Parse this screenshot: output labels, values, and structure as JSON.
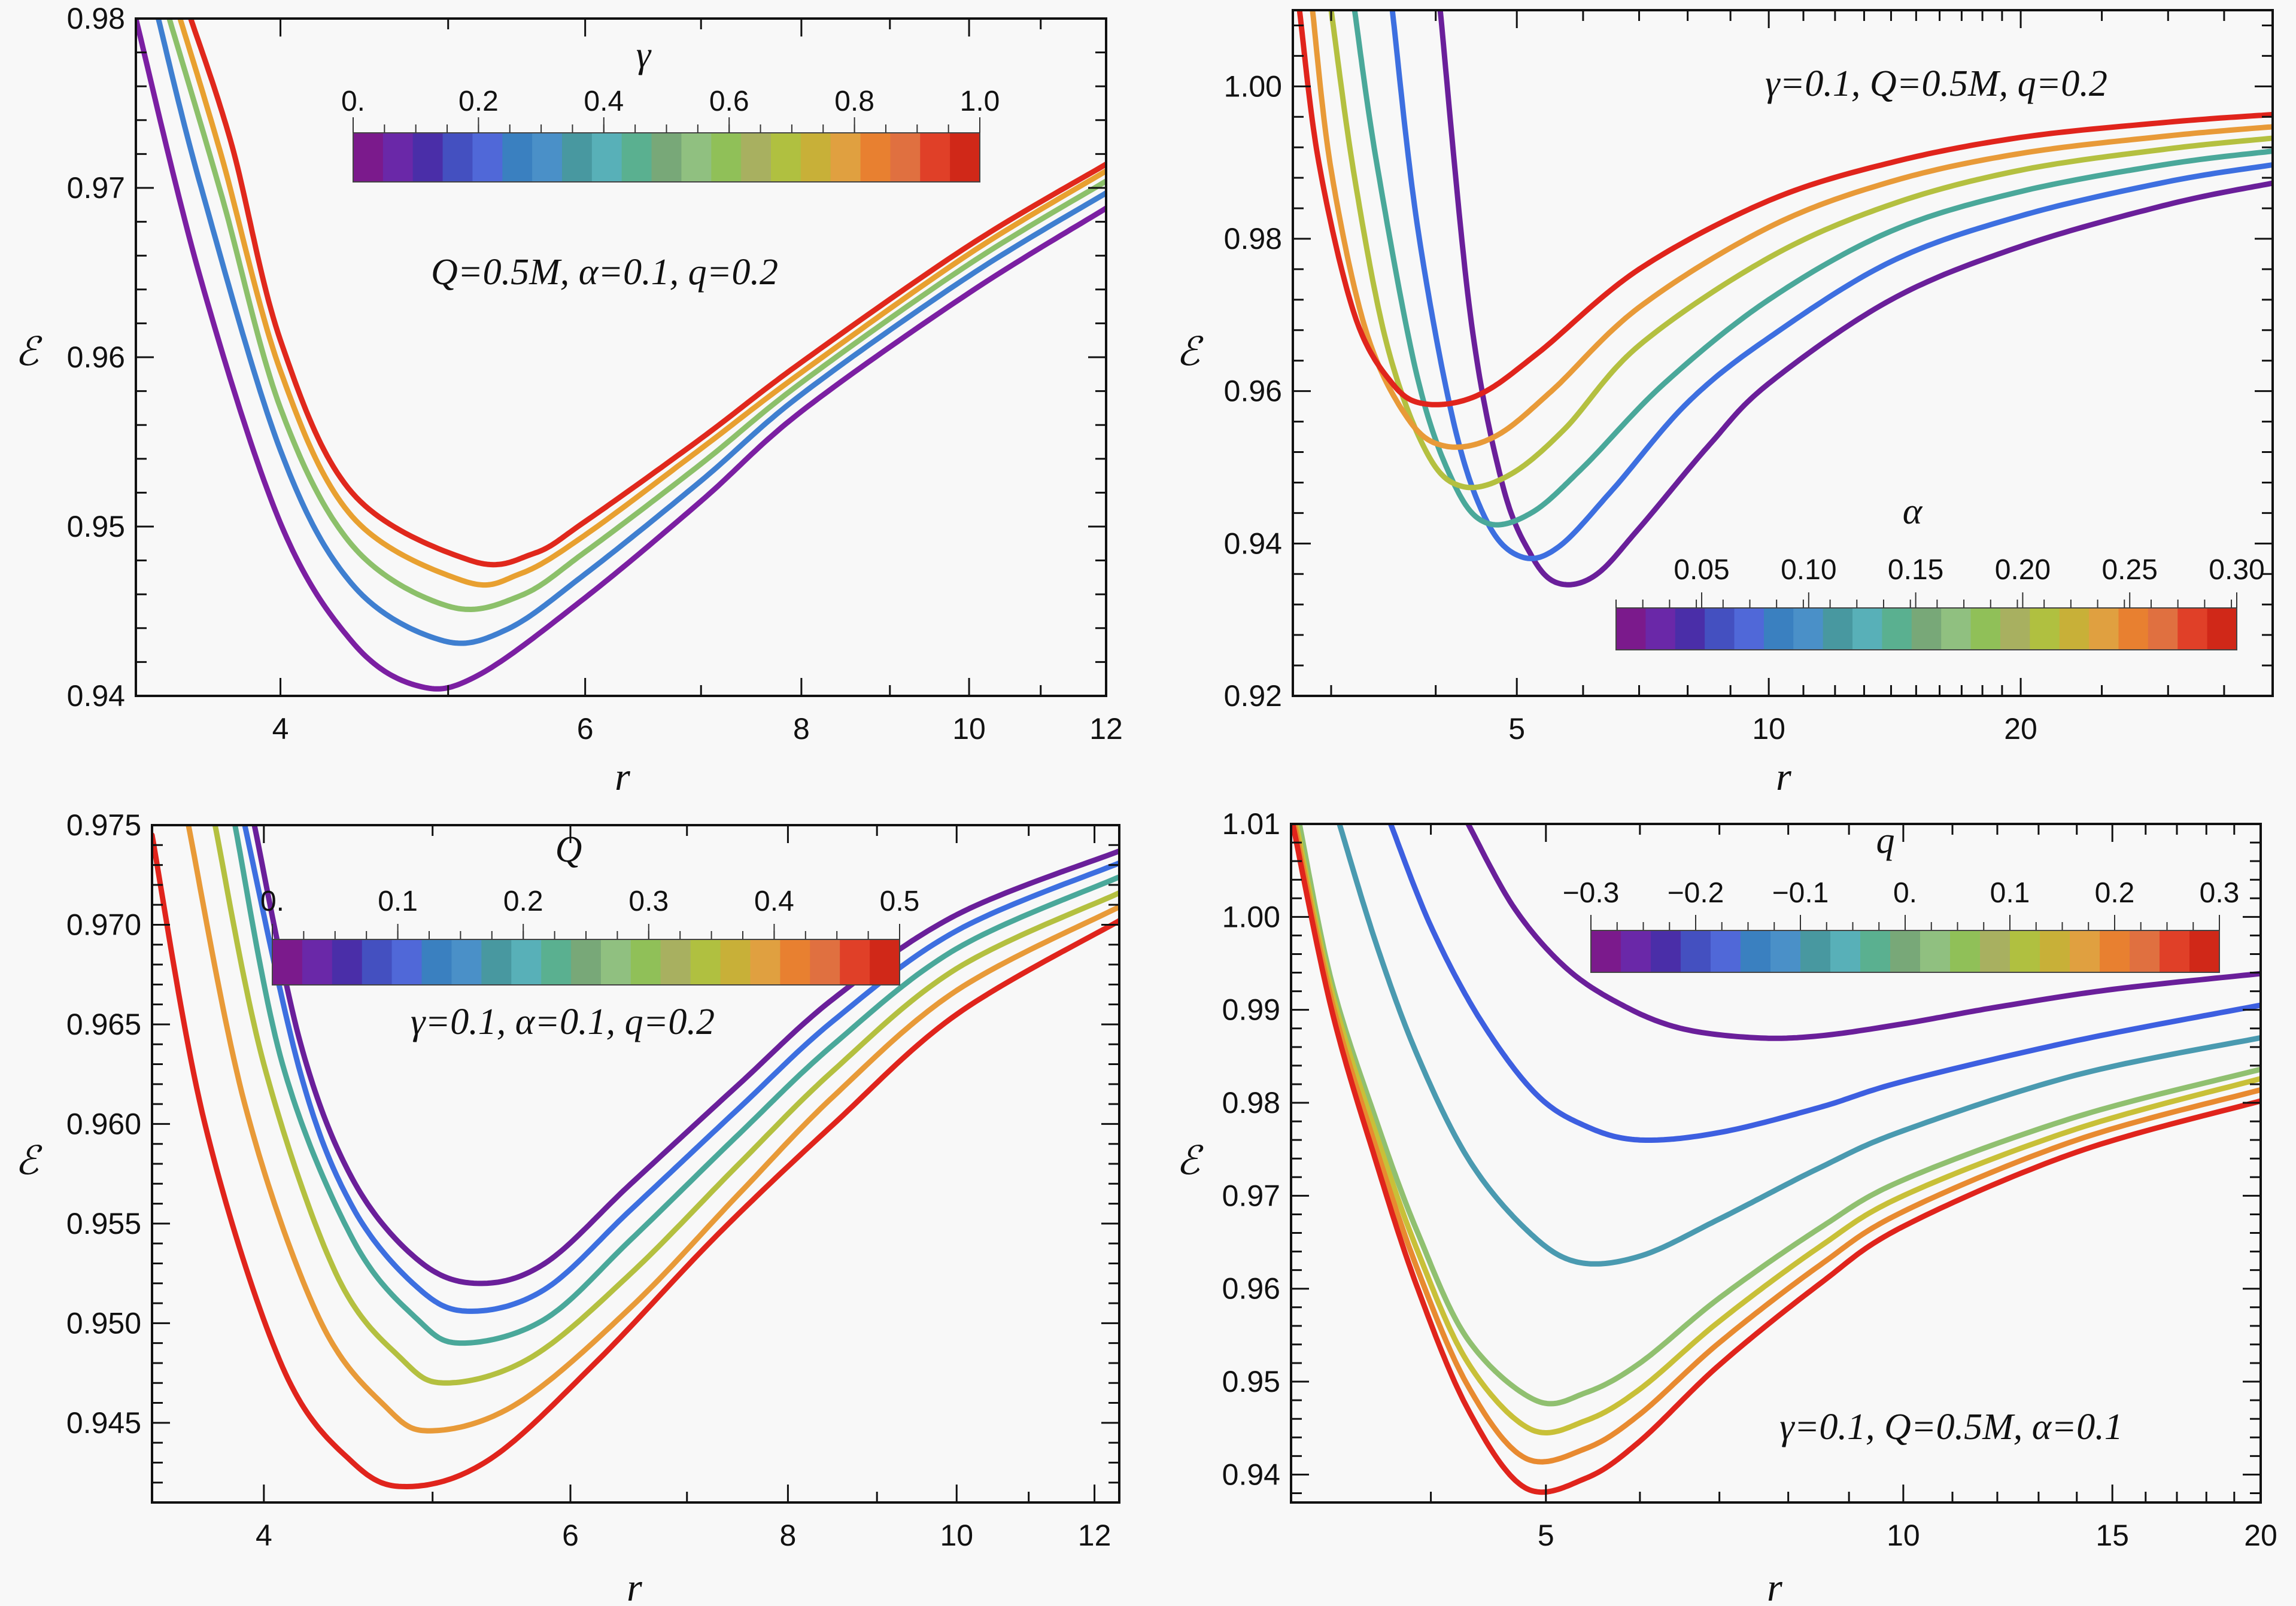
{
  "chart_data": [
    {
      "type": "line",
      "panel": "top-left",
      "xlabel": "r",
      "ylabel": "ℰ",
      "xscale": "log",
      "xlim": [
        3.3,
        12
      ],
      "ylim": [
        0.94,
        0.98
      ],
      "xticks": [
        4,
        6,
        8,
        10,
        12
      ],
      "xtick_labels": [
        "4",
        "6",
        "8",
        "10",
        "12"
      ],
      "yticks": [
        0.94,
        0.95,
        0.96,
        0.97,
        0.98
      ],
      "ytick_labels": [
        "0.94",
        "0.95",
        "0.96",
        "0.97",
        "0.98"
      ],
      "annotation": "Q=0.5M, α=0.1, q=0.2",
      "colorbar": {
        "title": "γ",
        "range": [
          0,
          1
        ],
        "tick_labels": [
          "0.",
          "0.2",
          "0.4",
          "0.6",
          "0.8",
          "1.0"
        ],
        "tick_values": [
          0,
          0.2,
          0.4,
          0.6,
          0.8,
          1.0
        ]
      },
      "series": [
        {
          "name": "γ=0",
          "color": "#7b1fa2",
          "r": [
            3.3,
            3.6,
            4.0,
            4.4,
            4.8,
            5.2,
            6.0,
            7.0,
            8.0,
            10.0,
            12.0
          ],
          "E": [
            0.98,
            0.9645,
            0.9502,
            0.9432,
            0.9406,
            0.9412,
            0.9458,
            0.9515,
            0.9568,
            0.9638,
            0.9688
          ]
        },
        {
          "name": "γ=0.25",
          "color": "#3f7fd0",
          "r": [
            3.4,
            3.6,
            4.0,
            4.4,
            4.95,
            5.4,
            6.0,
            7.0,
            8.0,
            10.0,
            12.0
          ],
          "E": [
            0.98,
            0.97,
            0.9545,
            0.9466,
            0.9433,
            0.9439,
            0.9472,
            0.9527,
            0.9578,
            0.9648,
            0.9697
          ]
        },
        {
          "name": "γ=0.5",
          "color": "#8cc06a",
          "r": [
            3.45,
            3.7,
            4.0,
            4.4,
            5.0,
            5.5,
            6.0,
            7.0,
            8.0,
            10.0,
            12.0
          ],
          "E": [
            0.98,
            0.9695,
            0.957,
            0.9489,
            0.9453,
            0.9459,
            0.9485,
            0.9537,
            0.9585,
            0.9655,
            0.9704
          ]
        },
        {
          "name": "γ=0.75",
          "color": "#e8a030",
          "r": [
            3.5,
            3.7,
            4.0,
            4.4,
            5.1,
            5.5,
            6.0,
            7.0,
            8.0,
            10.0,
            12.0
          ],
          "E": [
            0.98,
            0.9718,
            0.9592,
            0.9506,
            0.9468,
            0.9472,
            0.9495,
            0.9546,
            0.9591,
            0.9661,
            0.971
          ]
        },
        {
          "name": "γ=1.0",
          "color": "#e0281c",
          "r": [
            3.55,
            3.75,
            4.0,
            4.4,
            5.15,
            5.6,
            6.0,
            7.0,
            8.0,
            10.0,
            12.0
          ],
          "E": [
            0.98,
            0.9725,
            0.961,
            0.952,
            0.948,
            0.9484,
            0.9503,
            0.9552,
            0.9597,
            0.9666,
            0.9714
          ]
        }
      ]
    },
    {
      "type": "line",
      "panel": "top-right",
      "xlabel": "r",
      "ylabel": "ℰ",
      "xscale": "log",
      "xlim": [
        2.7,
        40
      ],
      "ylim": [
        0.92,
        1.01
      ],
      "xticks": [
        5,
        10,
        20
      ],
      "xtick_labels": [
        "5",
        "10",
        "20"
      ],
      "yticks": [
        0.92,
        0.94,
        0.96,
        0.98,
        1.0
      ],
      "ytick_labels": [
        "0.92",
        "0.94",
        "0.96",
        "0.98",
        "1.00"
      ],
      "annotation": "γ=0.1, Q=0.5M, q=0.2",
      "colorbar": {
        "title": "α",
        "range": [
          0.01,
          0.3
        ],
        "tick_labels": [
          "0.05",
          "0.10",
          "0.15",
          "0.20",
          "0.25",
          "0.30"
        ],
        "tick_values": [
          0.05,
          0.1,
          0.15,
          0.2,
          0.25,
          0.3
        ]
      },
      "series": [
        {
          "name": "α=0.05",
          "color": "#6a1f9a",
          "r": [
            4.05,
            4.4,
            4.8,
            5.2,
            5.6,
            6.2,
            7.0,
            8.5,
            10,
            14,
            20,
            30,
            40
          ],
          "E": [
            1.01,
            0.97,
            0.948,
            0.9385,
            0.9348,
            0.9358,
            0.942,
            0.953,
            0.961,
            0.972,
            0.979,
            0.9845,
            0.9873
          ]
        },
        {
          "name": "α=0.10",
          "color": "#3d6fe0",
          "r": [
            3.55,
            3.8,
            4.2,
            4.6,
            5.05,
            5.6,
            6.5,
            8.0,
            10,
            14,
            20,
            30,
            40
          ],
          "E": [
            1.01,
            0.982,
            0.956,
            0.943,
            0.9383,
            0.9395,
            0.947,
            0.9585,
            0.967,
            0.977,
            0.983,
            0.9875,
            0.9897
          ]
        },
        {
          "name": "α=0.15",
          "color": "#4aa89a",
          "r": [
            3.2,
            3.4,
            3.8,
            4.2,
            4.6,
            5.2,
            6.0,
            7.5,
            10,
            14,
            20,
            30,
            40
          ],
          "E": [
            1.01,
            0.99,
            0.962,
            0.948,
            0.9427,
            0.944,
            0.95,
            0.961,
            0.972,
            0.981,
            0.9862,
            0.9898,
            0.9915
          ]
        },
        {
          "name": "α=0.20",
          "color": "#b4c040",
          "r": [
            3.0,
            3.2,
            3.5,
            3.9,
            4.3,
            4.9,
            5.7,
            7.0,
            10,
            14,
            20,
            30,
            40
          ],
          "E": [
            1.01,
            0.988,
            0.966,
            0.952,
            0.9475,
            0.949,
            0.955,
            0.966,
            0.9775,
            0.9845,
            0.989,
            0.9918,
            0.9932
          ]
        },
        {
          "name": "α=0.25",
          "color": "#e89a38",
          "r": [
            2.85,
            3.0,
            3.3,
            3.7,
            4.1,
            4.7,
            5.5,
            7.0,
            10,
            14,
            20,
            30,
            40
          ],
          "E": [
            1.01,
            0.989,
            0.968,
            0.9565,
            0.9528,
            0.954,
            0.96,
            0.971,
            0.9815,
            0.9875,
            0.9912,
            0.9935,
            0.9947
          ]
        },
        {
          "name": "α=0.30",
          "color": "#e0241c",
          "r": [
            2.75,
            2.9,
            3.2,
            3.55,
            3.9,
            4.5,
            5.3,
            7.0,
            10,
            14,
            20,
            30,
            40
          ],
          "E": [
            1.01,
            0.99,
            0.97,
            0.961,
            0.9583,
            0.9595,
            0.965,
            0.976,
            0.985,
            0.99,
            0.9933,
            0.9953,
            0.9963
          ]
        }
      ]
    },
    {
      "type": "line",
      "panel": "bottom-left",
      "xlabel": "r",
      "ylabel": "ℰ",
      "xscale": "log",
      "xlim": [
        3.45,
        12.4
      ],
      "ylim": [
        0.941,
        0.975
      ],
      "xticks": [
        4,
        6,
        8,
        10,
        12
      ],
      "xtick_labels": [
        "4",
        "6",
        "8",
        "10",
        "12"
      ],
      "yticks": [
        0.945,
        0.95,
        0.955,
        0.96,
        0.965,
        0.97,
        0.975
      ],
      "ytick_labels": [
        "0.945",
        "0.950",
        "0.955",
        "0.960",
        "0.965",
        "0.970",
        "0.975"
      ],
      "annotation": "γ=0.1, α=0.1, q=0.2",
      "colorbar": {
        "title": "Q",
        "range": [
          0,
          0.5
        ],
        "tick_labels": [
          "0.",
          "0.1",
          "0.2",
          "0.3",
          "0.4",
          "0.5"
        ],
        "tick_values": [
          0,
          0.1,
          0.2,
          0.3,
          0.4,
          0.5
        ]
      },
      "series": [
        {
          "name": "Q=0",
          "color": "#6a1f9a",
          "r": [
            3.95,
            4.2,
            4.5,
            4.9,
            5.3,
            5.8,
            6.5,
            7.5,
            8.5,
            10,
            12.4
          ],
          "E": [
            0.975,
            0.964,
            0.9572,
            0.9532,
            0.952,
            0.953,
            0.957,
            0.962,
            0.9663,
            0.9705,
            0.9737
          ]
        },
        {
          "name": "Q=0.1",
          "color": "#3d6fe0",
          "r": [
            3.9,
            4.2,
            4.5,
            4.9,
            5.25,
            5.8,
            6.5,
            7.5,
            8.5,
            10,
            12.4
          ],
          "E": [
            0.975,
            0.9625,
            0.9558,
            0.9518,
            0.9506,
            0.9517,
            0.9557,
            0.9608,
            0.9652,
            0.9697,
            0.9731
          ]
        },
        {
          "name": "Q=0.2",
          "color": "#4aa89a",
          "r": [
            3.85,
            4.1,
            4.5,
            4.9,
            5.2,
            5.8,
            6.5,
            7.5,
            8.5,
            10,
            12.4
          ],
          "E": [
            0.975,
            0.963,
            0.9542,
            0.9502,
            0.949,
            0.9502,
            0.9542,
            0.9595,
            0.964,
            0.9688,
            0.9724
          ]
        },
        {
          "name": "Q=0.3",
          "color": "#b4c040",
          "r": [
            3.75,
            4.0,
            4.4,
            4.8,
            5.1,
            5.7,
            6.5,
            7.5,
            8.5,
            10,
            12.4
          ],
          "E": [
            0.975,
            0.963,
            0.9525,
            0.9482,
            0.947,
            0.9483,
            0.9525,
            0.958,
            0.9627,
            0.9678,
            0.9716
          ]
        },
        {
          "name": "Q=0.4",
          "color": "#e89a38",
          "r": [
            3.62,
            3.9,
            4.3,
            4.7,
            5.0,
            5.6,
            6.5,
            7.5,
            8.5,
            10,
            12.4
          ],
          "E": [
            0.975,
            0.961,
            0.9503,
            0.9458,
            0.9446,
            0.946,
            0.9508,
            0.9565,
            0.9614,
            0.9667,
            0.9709
          ]
        },
        {
          "name": "Q=0.5",
          "color": "#e0241c",
          "r": [
            3.45,
            3.7,
            4.1,
            4.5,
            4.85,
            5.4,
            6.2,
            7.3,
            8.5,
            10,
            12.4
          ],
          "E": [
            0.9745,
            0.96,
            0.9478,
            0.943,
            0.9418,
            0.9432,
            0.948,
            0.9545,
            0.96,
            0.9655,
            0.9702
          ]
        }
      ]
    },
    {
      "type": "line",
      "panel": "bottom-right",
      "xlabel": "r",
      "ylabel": "ℰ",
      "xscale": "log",
      "xlim": [
        3.05,
        20
      ],
      "ylim": [
        0.937,
        1.01
      ],
      "xticks": [
        5,
        10,
        15,
        20
      ],
      "xtick_labels": [
        "5",
        "10",
        "15",
        "20"
      ],
      "yticks": [
        0.94,
        0.95,
        0.96,
        0.97,
        0.98,
        0.99,
        1.0,
        1.01
      ],
      "ytick_labels": [
        "0.94",
        "0.95",
        "0.96",
        "0.97",
        "0.98",
        "0.99",
        "1.00",
        "1.01"
      ],
      "annotation": "γ=0.1, Q=0.5M, α=0.1",
      "colorbar": {
        "title": "q",
        "range": [
          -0.3,
          0.3
        ],
        "tick_labels": [
          "−0.3",
          "−0.2",
          "−0.1",
          "0.",
          "0.1",
          "0.2",
          "0.3"
        ],
        "tick_values": [
          -0.3,
          -0.2,
          -0.1,
          0,
          0.1,
          0.2,
          0.3
        ]
      },
      "series": [
        {
          "name": "q=-0.3",
          "color": "#6a1f9a",
          "r": [
            4.3,
            4.7,
            5.2,
            5.8,
            6.5,
            7.5,
            8.5,
            10,
            12,
            15,
            20
          ],
          "E": [
            1.01,
            1.001,
            0.9945,
            0.9905,
            0.988,
            0.987,
            0.9872,
            0.9885,
            0.9903,
            0.9922,
            0.9939
          ]
        },
        {
          "name": "q=-0.2",
          "color": "#3d5fe0",
          "r": [
            3.7,
            4.0,
            4.4,
            4.9,
            5.4,
            6.0,
            7.0,
            8.5,
            10,
            14,
            20
          ],
          "E": [
            1.01,
            0.999,
            0.989,
            0.981,
            0.9775,
            0.976,
            0.9768,
            0.9795,
            0.9823,
            0.9867,
            0.9905
          ]
        },
        {
          "name": "q=-0.1",
          "color": "#4a9ab0",
          "r": [
            3.35,
            3.6,
            3.9,
            4.3,
            4.8,
            5.3,
            6.0,
            7.0,
            8.5,
            10,
            14,
            20
          ],
          "E": [
            1.01,
            0.997,
            0.985,
            0.974,
            0.9665,
            0.9629,
            0.9635,
            0.9675,
            0.973,
            0.977,
            0.983,
            0.987
          ]
        },
        {
          "name": "q=0",
          "color": "#90c070",
          "r": [
            3.1,
            3.3,
            3.6,
            3.9,
            4.3,
            4.9,
            5.4,
            6.0,
            7.0,
            8.5,
            10,
            14,
            20
          ],
          "E": [
            1.01,
            0.993,
            0.978,
            0.966,
            0.9545,
            0.948,
            0.9488,
            0.952,
            0.959,
            0.9665,
            0.9717,
            0.9785,
            0.9836
          ]
        },
        {
          "name": "q=0.1",
          "color": "#c8c038",
          "r": [
            3.08,
            3.3,
            3.6,
            3.9,
            4.3,
            4.85,
            5.4,
            6.0,
            7.0,
            8.5,
            10,
            14,
            20
          ],
          "E": [
            1.01,
            0.992,
            0.9765,
            0.964,
            0.952,
            0.9449,
            0.9458,
            0.9492,
            0.9565,
            0.9645,
            0.97,
            0.9772,
            0.9826
          ]
        },
        {
          "name": "q=0.2",
          "color": "#e88a30",
          "r": [
            3.07,
            3.3,
            3.6,
            3.9,
            4.3,
            4.8,
            5.4,
            6.0,
            7.0,
            8.5,
            10,
            14,
            20
          ],
          "E": [
            1.01,
            0.991,
            0.975,
            0.962,
            0.9495,
            0.9418,
            0.9428,
            0.9465,
            0.9542,
            0.9625,
            0.9683,
            0.976,
            0.9814
          ]
        },
        {
          "name": "q=0.3",
          "color": "#e0241c",
          "r": [
            3.06,
            3.3,
            3.6,
            3.9,
            4.3,
            4.8,
            5.4,
            6.0,
            7.0,
            8.5,
            10,
            14,
            20
          ],
          "E": [
            1.01,
            0.99,
            0.9735,
            0.96,
            0.947,
            0.9386,
            0.9396,
            0.9436,
            0.9518,
            0.9605,
            0.9667,
            0.9747,
            0.9802
          ]
        }
      ]
    }
  ],
  "colorbar_palette": [
    "#7b1a8c",
    "#6a28a8",
    "#4a2ea8",
    "#4450c0",
    "#5068d8",
    "#3a80c0",
    "#4a90c8",
    "#4898a0",
    "#58b0b8",
    "#5ab090",
    "#78a878",
    "#90c080",
    "#90c058",
    "#a8b060",
    "#b0c040",
    "#c8b038",
    "#e0a040",
    "#e88030",
    "#e07040",
    "#e04028",
    "#d02818"
  ]
}
